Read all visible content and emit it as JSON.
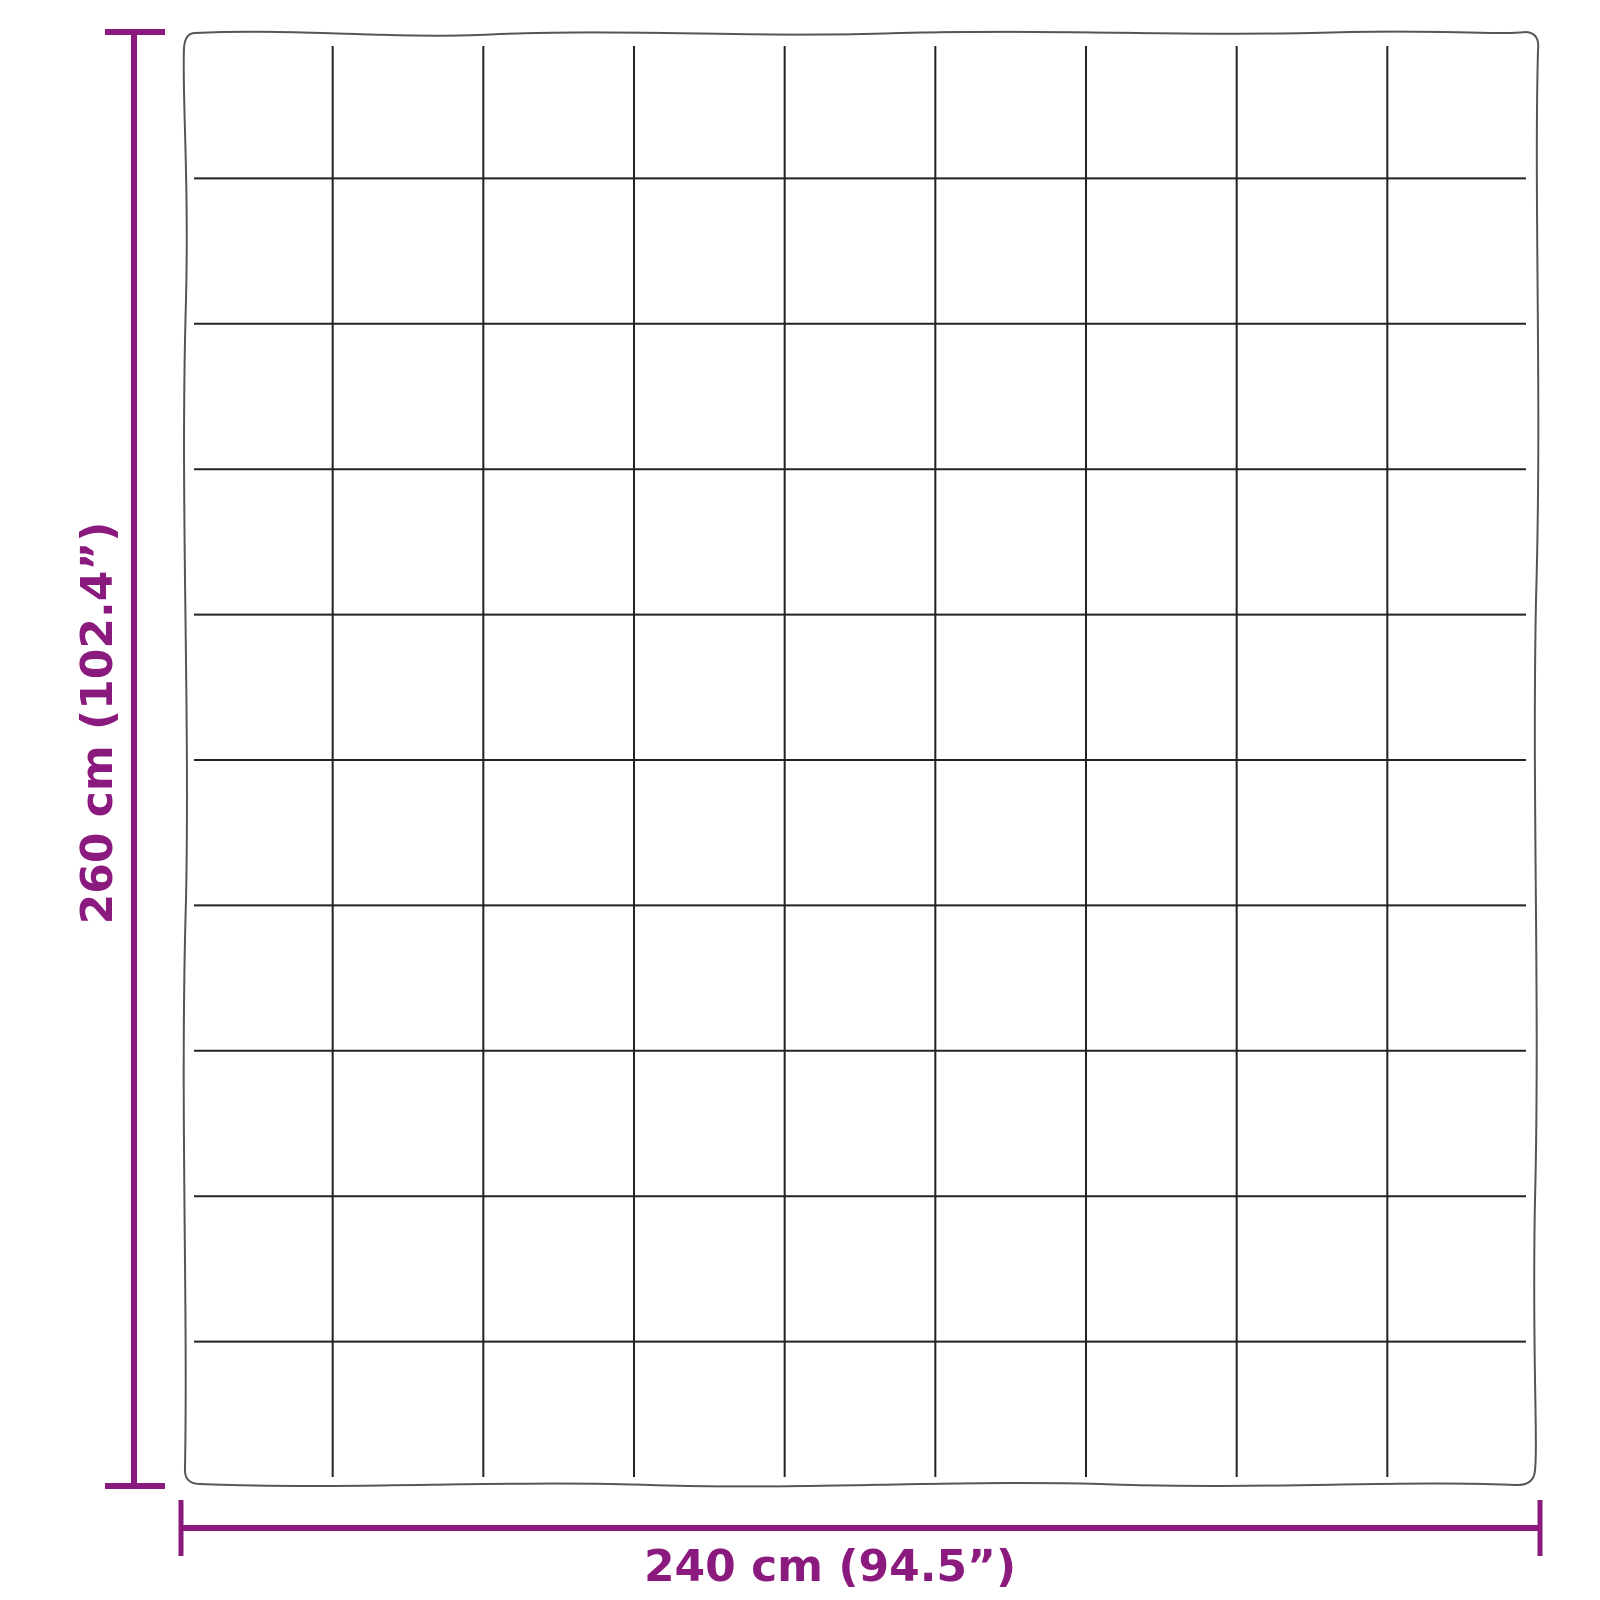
{
  "dimensions": {
    "width_label": "240 cm (94.5”)",
    "height_label": "260 cm (102.4”)"
  },
  "grid": {
    "columns": 9,
    "rows": 10
  },
  "colors": {
    "dimension": "#8b1a7e",
    "outline": "#555555",
    "stitch": "#222222"
  }
}
